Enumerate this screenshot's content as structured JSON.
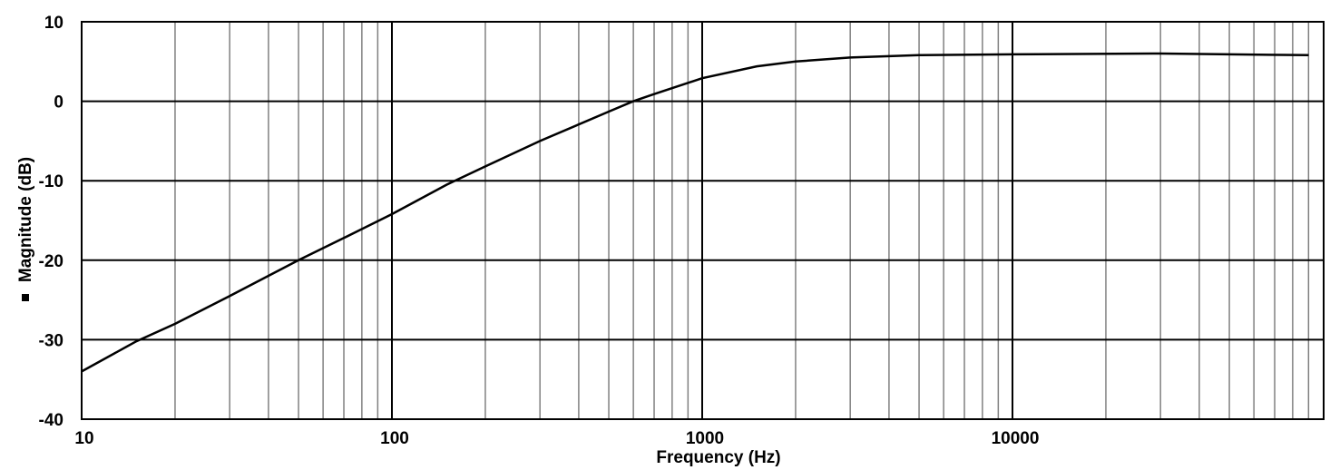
{
  "chart_data": {
    "type": "line",
    "title": "",
    "xlabel": "Frequency (Hz)",
    "ylabel": "Magnitude (dB)",
    "xscale": "log",
    "xlim": [
      10,
      100000
    ],
    "ylim": [
      -40,
      10
    ],
    "x_ticks": [
      10,
      100,
      1000,
      10000
    ],
    "x_tick_labels": [
      "10",
      "100",
      "1000",
      "10000"
    ],
    "y_ticks": [
      10,
      0,
      -10,
      -20,
      -30,
      -40
    ],
    "y_tick_labels": [
      "10",
      "0",
      "-10",
      "-20",
      "-30",
      "-40"
    ],
    "grid": true,
    "legend": null,
    "series": [
      {
        "name": "Magnitude",
        "color": "#000000",
        "x": [
          10,
          15,
          20,
          30,
          50,
          70,
          100,
          150,
          200,
          300,
          500,
          600,
          700,
          1000,
          1500,
          2000,
          3000,
          5000,
          10000,
          30000,
          50000,
          90000
        ],
        "values": [
          -34,
          -30.2,
          -28,
          -24.5,
          -20,
          -17.2,
          -14.2,
          -10.5,
          -8.2,
          -5,
          -1.3,
          0,
          0.9,
          2.9,
          4.4,
          5,
          5.5,
          5.8,
          5.9,
          6,
          5.9,
          5.8
        ]
      }
    ]
  }
}
